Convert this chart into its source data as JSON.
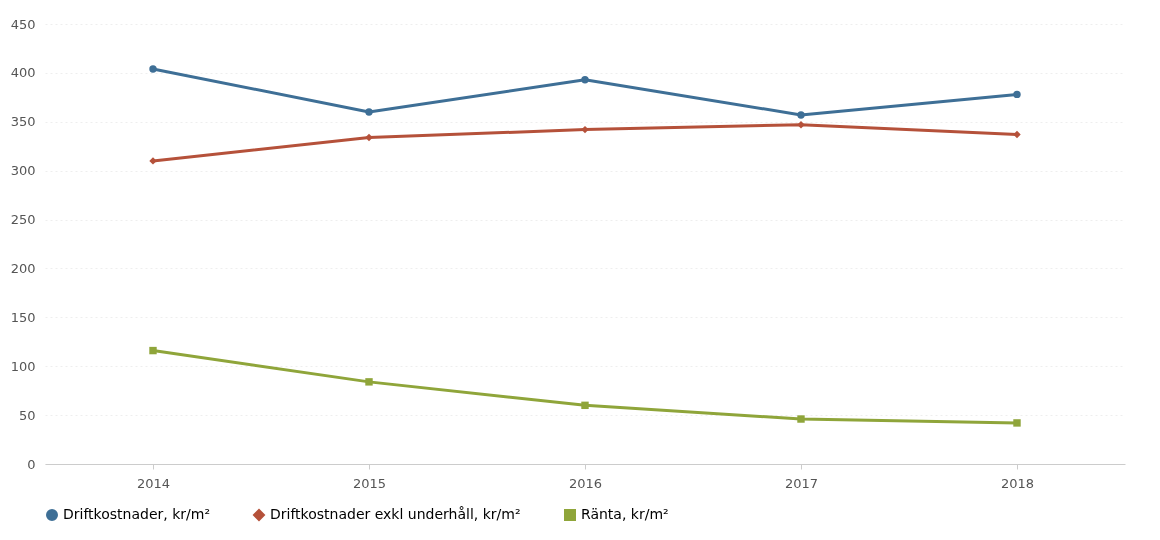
{
  "chart_data": {
    "type": "line",
    "categories": [
      "2014",
      "2015",
      "2016",
      "2017",
      "2018"
    ],
    "series": [
      {
        "name": "Driftkostnader, kr/m²",
        "color": "#3e6f96",
        "marker": "circle",
        "values": [
          404,
          360,
          393,
          357,
          378
        ]
      },
      {
        "name": "Driftkostnader exkl underhåll, kr/m²",
        "color": "#b5513a",
        "marker": "diamond",
        "values": [
          310,
          334,
          342,
          347,
          337
        ]
      },
      {
        "name": "Ränta, kr/m²",
        "color": "#8fa53a",
        "marker": "square",
        "values": [
          116,
          84,
          60,
          46,
          42
        ]
      }
    ],
    "ylim": [
      0,
      450
    ],
    "yticks": [
      0,
      50,
      100,
      150,
      200,
      250,
      300,
      350,
      400,
      450
    ],
    "grid": "y",
    "legend": "bottom"
  }
}
